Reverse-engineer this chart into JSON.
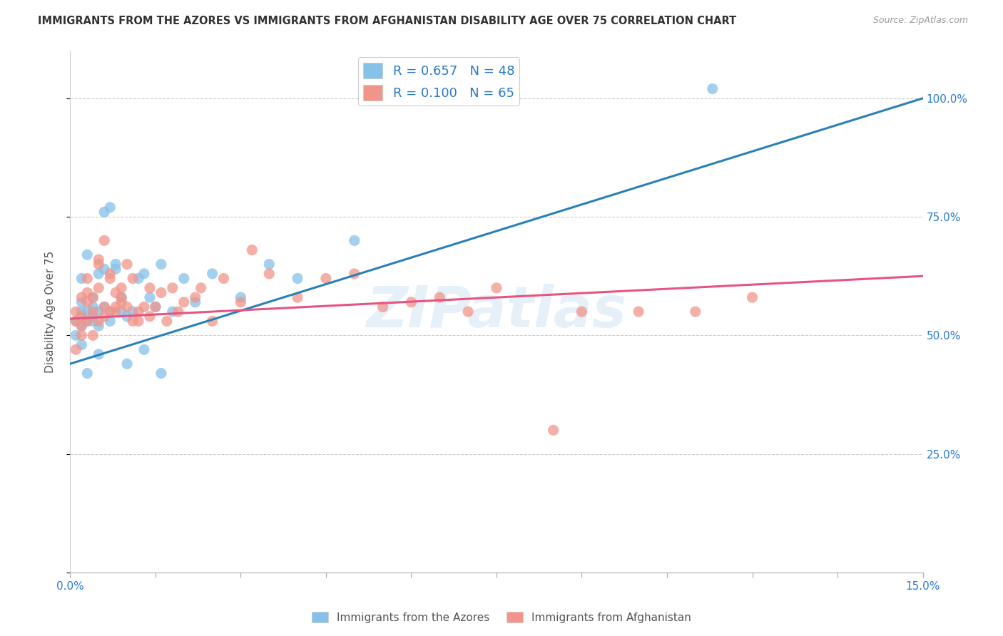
{
  "title": "IMMIGRANTS FROM THE AZORES VS IMMIGRANTS FROM AFGHANISTAN DISABILITY AGE OVER 75 CORRELATION CHART",
  "source": "Source: ZipAtlas.com",
  "ylabel": "Disability Age Over 75",
  "xlim": [
    0.0,
    0.15
  ],
  "ylim": [
    0.0,
    1.1
  ],
  "x_ticks": [
    0.0,
    0.015,
    0.03,
    0.045,
    0.06,
    0.075,
    0.09,
    0.105,
    0.12,
    0.135,
    0.15
  ],
  "y_tick_positions": [
    0.0,
    0.25,
    0.5,
    0.75,
    1.0
  ],
  "y_tick_labels": [
    "",
    "25.0%",
    "50.0%",
    "75.0%",
    "100.0%"
  ],
  "color_azores": "#85c1e9",
  "color_afghanistan": "#f1948a",
  "trendline_azores_color": "#2980b9",
  "trendline_afghanistan_color": "#e75480",
  "watermark": "ZIPatlas",
  "az_trendline_x0": 0.0,
  "az_trendline_y0": 0.44,
  "az_trendline_x1": 0.15,
  "az_trendline_y1": 1.0,
  "af_trendline_x0": 0.0,
  "af_trendline_y0": 0.535,
  "af_trendline_x1": 0.15,
  "af_trendline_y1": 0.625,
  "azores_scatter_x": [
    0.001,
    0.001,
    0.002,
    0.002,
    0.002,
    0.002,
    0.002,
    0.003,
    0.003,
    0.003,
    0.003,
    0.004,
    0.004,
    0.004,
    0.004,
    0.005,
    0.005,
    0.005,
    0.005,
    0.006,
    0.006,
    0.006,
    0.007,
    0.007,
    0.007,
    0.008,
    0.008,
    0.009,
    0.009,
    0.01,
    0.01,
    0.011,
    0.012,
    0.013,
    0.013,
    0.014,
    0.015,
    0.016,
    0.016,
    0.018,
    0.02,
    0.022,
    0.025,
    0.03,
    0.035,
    0.04,
    0.05,
    0.113
  ],
  "azores_scatter_y": [
    0.5,
    0.53,
    0.62,
    0.57,
    0.52,
    0.55,
    0.48,
    0.67,
    0.53,
    0.55,
    0.42,
    0.53,
    0.58,
    0.56,
    0.54,
    0.63,
    0.52,
    0.55,
    0.46,
    0.64,
    0.76,
    0.56,
    0.77,
    0.55,
    0.53,
    0.65,
    0.64,
    0.58,
    0.55,
    0.44,
    0.54,
    0.55,
    0.62,
    0.47,
    0.63,
    0.58,
    0.56,
    0.65,
    0.42,
    0.55,
    0.62,
    0.57,
    0.63,
    0.58,
    0.65,
    0.62,
    0.7,
    1.02
  ],
  "afghanistan_scatter_x": [
    0.001,
    0.001,
    0.001,
    0.002,
    0.002,
    0.002,
    0.002,
    0.003,
    0.003,
    0.003,
    0.003,
    0.004,
    0.004,
    0.004,
    0.005,
    0.005,
    0.005,
    0.005,
    0.006,
    0.006,
    0.006,
    0.007,
    0.007,
    0.007,
    0.008,
    0.008,
    0.008,
    0.009,
    0.009,
    0.009,
    0.01,
    0.01,
    0.011,
    0.011,
    0.012,
    0.012,
    0.013,
    0.014,
    0.014,
    0.015,
    0.016,
    0.017,
    0.018,
    0.019,
    0.02,
    0.022,
    0.023,
    0.025,
    0.027,
    0.03,
    0.032,
    0.035,
    0.04,
    0.045,
    0.05,
    0.055,
    0.06,
    0.065,
    0.07,
    0.075,
    0.085,
    0.09,
    0.1,
    0.11,
    0.12
  ],
  "afghanistan_scatter_y": [
    0.53,
    0.47,
    0.55,
    0.5,
    0.52,
    0.58,
    0.54,
    0.62,
    0.53,
    0.57,
    0.59,
    0.55,
    0.5,
    0.58,
    0.53,
    0.6,
    0.66,
    0.65,
    0.7,
    0.54,
    0.56,
    0.63,
    0.55,
    0.62,
    0.56,
    0.59,
    0.55,
    0.58,
    0.57,
    0.6,
    0.56,
    0.65,
    0.53,
    0.62,
    0.53,
    0.55,
    0.56,
    0.6,
    0.54,
    0.56,
    0.59,
    0.53,
    0.6,
    0.55,
    0.57,
    0.58,
    0.6,
    0.53,
    0.62,
    0.57,
    0.68,
    0.63,
    0.58,
    0.62,
    0.63,
    0.56,
    0.57,
    0.58,
    0.55,
    0.6,
    0.3,
    0.55,
    0.55,
    0.55,
    0.58
  ],
  "legend_azores_R": "R = 0.657",
  "legend_azores_N": "N = 48",
  "legend_afghanistan_R": "R = 0.100",
  "legend_afghanistan_N": "N = 65",
  "legend_label_azores": "Immigrants from the Azores",
  "legend_label_afghanistan": "Immigrants from Afghanistan"
}
